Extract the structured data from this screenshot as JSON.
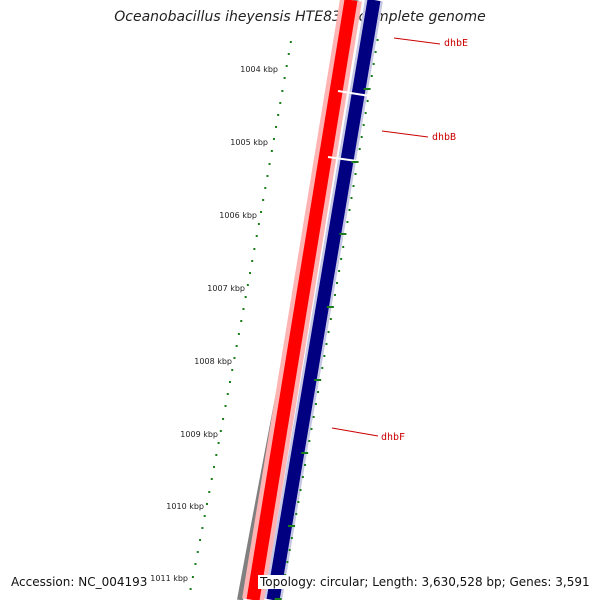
{
  "title": "Oceanobacillus iheyensis HTE831, complete genome",
  "footer": {
    "accession": "Accession: NC_004193",
    "topology": "Topology: circular; Length: 3,630,528 bp; Genes: 3,591"
  },
  "colors": {
    "backbone": "#808080",
    "forward_strand": "#ff0000",
    "reverse_strand": "#000080",
    "tick": "#1a7f1a",
    "gene_label": "#cc0000"
  },
  "ruler": {
    "unit": "kbp",
    "labels": [
      "1004 kbp",
      "1005 kbp",
      "1006 kbp",
      "1007 kbp",
      "1008 kbp",
      "1009 kbp",
      "1010 kbp",
      "1011 kbp"
    ]
  },
  "genes": [
    {
      "name": "dhbE",
      "strand": "forward"
    },
    {
      "name": "dhbB",
      "strand": "forward"
    },
    {
      "name": "dhbF",
      "strand": "forward"
    }
  ]
}
